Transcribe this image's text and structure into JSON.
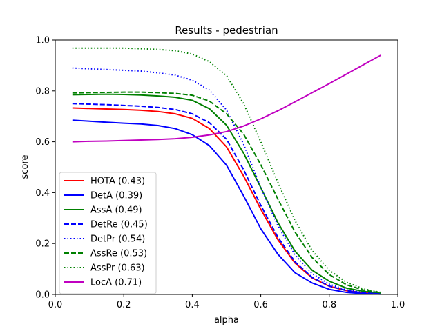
{
  "chart_data": {
    "type": "line",
    "title": "Results - pedestrian",
    "xlabel": "alpha",
    "ylabel": "score",
    "xlim": [
      0.0,
      1.0
    ],
    "ylim": [
      0.0,
      1.0
    ],
    "x_ticks": [
      "0.0",
      "0.2",
      "0.4",
      "0.6",
      "0.8",
      "1.0"
    ],
    "y_ticks": [
      "0.0",
      "0.2",
      "0.4",
      "0.6",
      "0.8",
      "1.0"
    ],
    "grid": false,
    "legend_position": "lower-left",
    "x": [
      0.05,
      0.1,
      0.15,
      0.2,
      0.25,
      0.3,
      0.35,
      0.4,
      0.45,
      0.5,
      0.55,
      0.6,
      0.65,
      0.7,
      0.75,
      0.8,
      0.85,
      0.9,
      0.95
    ],
    "series": [
      {
        "name": "HOTA (0.43)",
        "color": "#ff0000",
        "dash": "solid",
        "values": [
          0.733,
          0.731,
          0.729,
          0.727,
          0.724,
          0.719,
          0.71,
          0.692,
          0.652,
          0.58,
          0.465,
          0.335,
          0.215,
          0.123,
          0.065,
          0.032,
          0.015,
          0.006,
          0.002
        ]
      },
      {
        "name": "DetA (0.39)",
        "color": "#0000ff",
        "dash": "solid",
        "values": [
          0.685,
          0.681,
          0.677,
          0.673,
          0.67,
          0.664,
          0.652,
          0.628,
          0.585,
          0.508,
          0.387,
          0.258,
          0.158,
          0.085,
          0.045,
          0.02,
          0.008,
          0.003,
          0.001
        ]
      },
      {
        "name": "AssA (0.49)",
        "color": "#008000",
        "dash": "solid",
        "values": [
          0.785,
          0.786,
          0.787,
          0.786,
          0.784,
          0.78,
          0.775,
          0.763,
          0.73,
          0.665,
          0.555,
          0.42,
          0.282,
          0.17,
          0.095,
          0.052,
          0.025,
          0.012,
          0.004
        ]
      },
      {
        "name": "DetRe (0.45)",
        "color": "#0000ff",
        "dash": "dashed",
        "values": [
          0.75,
          0.748,
          0.746,
          0.743,
          0.74,
          0.735,
          0.727,
          0.71,
          0.675,
          0.61,
          0.49,
          0.35,
          0.225,
          0.128,
          0.067,
          0.033,
          0.015,
          0.006,
          0.002
        ]
      },
      {
        "name": "DetPr (0.54)",
        "color": "#0000ff",
        "dash": "dotted",
        "values": [
          0.89,
          0.887,
          0.884,
          0.881,
          0.878,
          0.871,
          0.862,
          0.842,
          0.803,
          0.725,
          0.59,
          0.42,
          0.27,
          0.155,
          0.082,
          0.04,
          0.018,
          0.007,
          0.002
        ]
      },
      {
        "name": "AssRe (0.53)",
        "color": "#008000",
        "dash": "dashed",
        "values": [
          0.792,
          0.793,
          0.794,
          0.795,
          0.795,
          0.793,
          0.79,
          0.783,
          0.76,
          0.71,
          0.63,
          0.51,
          0.375,
          0.245,
          0.145,
          0.078,
          0.038,
          0.017,
          0.006
        ]
      },
      {
        "name": "AssPr (0.63)",
        "color": "#008000",
        "dash": "dotted",
        "values": [
          0.968,
          0.968,
          0.968,
          0.968,
          0.966,
          0.963,
          0.958,
          0.945,
          0.915,
          0.86,
          0.75,
          0.6,
          0.44,
          0.29,
          0.172,
          0.095,
          0.048,
          0.022,
          0.008
        ]
      },
      {
        "name": "LocA (0.71)",
        "color": "#c000c0",
        "dash": "solid",
        "values": [
          0.6,
          0.602,
          0.603,
          0.605,
          0.607,
          0.609,
          0.612,
          0.618,
          0.627,
          0.64,
          0.662,
          0.69,
          0.722,
          0.757,
          0.793,
          0.829,
          0.866,
          0.903,
          0.94
        ]
      }
    ]
  }
}
